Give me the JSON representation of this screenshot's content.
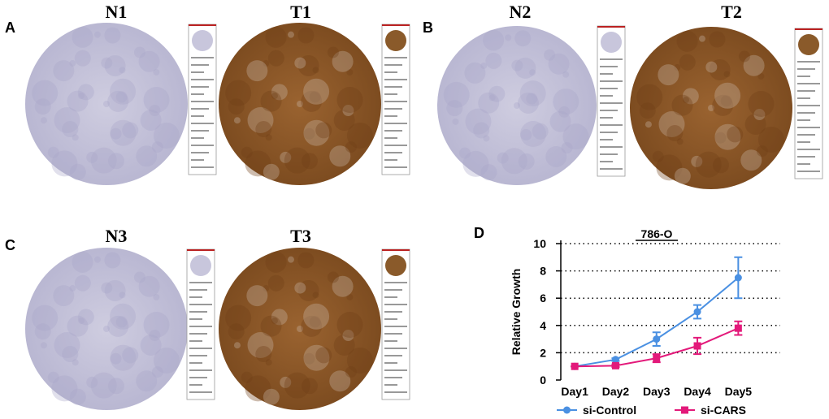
{
  "panels": [
    {
      "label": "A",
      "images": [
        {
          "title": "N1"
        },
        {
          "title": "T1"
        }
      ]
    },
    {
      "label": "B",
      "images": [
        {
          "title": "N2"
        },
        {
          "title": "T2"
        }
      ]
    },
    {
      "label": "C",
      "images": [
        {
          "title": "N3"
        },
        {
          "title": "T3"
        }
      ]
    }
  ],
  "chart_data": {
    "type": "line",
    "panel_label": "D",
    "title": "786-O",
    "y_label": "Relative Growth",
    "categories": [
      "Day1",
      "Day2",
      "Day3",
      "Day4",
      "Day5"
    ],
    "ylim": [
      0,
      10
    ],
    "yticks": [
      0,
      2,
      4,
      6,
      8,
      10
    ],
    "grid": true,
    "series": [
      {
        "name": "si-Control",
        "color": "#4a90e2",
        "marker": "circle",
        "values": [
          1,
          1.5,
          3,
          5,
          7.5
        ],
        "errors": [
          0,
          0.1,
          0.5,
          0.5,
          1.5
        ]
      },
      {
        "name": "si-CARS",
        "color": "#e3197a",
        "marker": "square",
        "values": [
          1,
          1.05,
          1.6,
          2.5,
          3.8
        ],
        "errors": [
          0,
          0.1,
          0.3,
          0.6,
          0.5
        ]
      }
    ]
  }
}
